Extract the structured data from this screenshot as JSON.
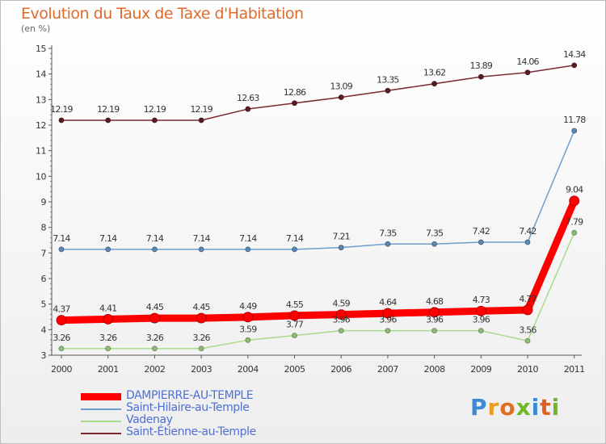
{
  "chart_data": {
    "type": "line",
    "title": "Evolution du Taux de Taxe d'Habitation",
    "unit_label": "(en %)",
    "x": [
      "2000",
      "2001",
      "2002",
      "2003",
      "2004",
      "2005",
      "2006",
      "2007",
      "2008",
      "2009",
      "2010",
      "2011"
    ],
    "ylim": [
      3,
      15
    ],
    "yticks": [
      "3",
      "4",
      "5",
      "6",
      "7",
      "8",
      "9",
      "10",
      "11",
      "12",
      "13",
      "14",
      "15"
    ],
    "series": [
      {
        "name": "Saint-Étienne-au-Temple",
        "color": "#7a2a32",
        "values": [
          12.19,
          12.19,
          12.19,
          12.19,
          12.63,
          12.86,
          13.09,
          13.35,
          13.62,
          13.89,
          14.06,
          14.34
        ],
        "labels": [
          "12.19",
          "12.19",
          "12.19",
          "12.19",
          "12.63",
          "12.86",
          "13.09",
          "13.35",
          "13.62",
          "13.89",
          "14.06",
          "14.34"
        ]
      },
      {
        "name": "Saint-Hilaire-au-Temple",
        "color": "#6c9fcf",
        "values": [
          7.14,
          7.14,
          7.14,
          7.14,
          7.14,
          7.14,
          7.21,
          7.35,
          7.35,
          7.42,
          7.42,
          11.78
        ],
        "labels": [
          "7.14",
          "7.14",
          "7.14",
          "7.14",
          "7.14",
          "7.14",
          "7.21",
          "7.35",
          "7.35",
          "7.42",
          "7.42",
          "11.78"
        ]
      },
      {
        "name": "Vadenay",
        "color": "#a8dc8a",
        "values": [
          3.26,
          3.26,
          3.26,
          3.26,
          3.59,
          3.77,
          3.96,
          3.96,
          3.96,
          3.96,
          3.56,
          7.79
        ],
        "labels": [
          "3.26",
          "3.26",
          "3.26",
          "3.26",
          "3.59",
          "3.77",
          "3.96",
          "3.96",
          "3.96",
          "3.96",
          "3.56",
          "7.79"
        ]
      },
      {
        "name": "DAMPIERRE-AU-TEMPLE",
        "color": "#ff0000",
        "values": [
          4.37,
          4.41,
          4.45,
          4.45,
          4.49,
          4.55,
          4.59,
          4.64,
          4.68,
          4.73,
          4.77,
          9.04
        ],
        "labels": [
          "4.37",
          "4.41",
          "4.45",
          "4.45",
          "4.49",
          "4.55",
          "4.59",
          "4.64",
          "4.68",
          "4.73",
          "4.77",
          "9.04"
        ]
      }
    ],
    "legend": [
      {
        "name": "DAMPIERRE-AU-TEMPLE",
        "color": "#ff0000"
      },
      {
        "name": "Saint-Hilaire-au-Temple",
        "color": "#6c9fcf"
      },
      {
        "name": "Vadenay",
        "color": "#a8dc8a"
      },
      {
        "name": "Saint-Étienne-au-Temple",
        "color": "#7a2a32"
      }
    ]
  },
  "brand": {
    "letters": [
      "P",
      "r",
      "o",
      "x",
      "i",
      "t",
      "i"
    ],
    "colors": [
      "#3a8ad8",
      "#e8a020",
      "#e07020",
      "#70b828",
      "#3a8ad8",
      "#e06020",
      "#70b828"
    ]
  }
}
